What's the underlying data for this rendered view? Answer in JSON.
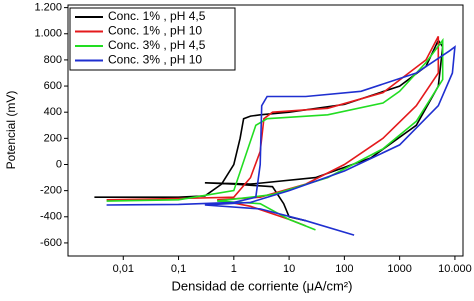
{
  "chart_data": {
    "type": "line",
    "xlabel": "Densidad de corriente (μA/cm²)",
    "ylabel": "Potencial (mV)",
    "log_x": true,
    "legend": "top-left",
    "xlim": [
      0.001,
      14000
    ],
    "ylim": [
      -700,
      1220
    ],
    "xticks": [
      {
        "value": 0.01,
        "label": "0,01"
      },
      {
        "value": 0.1,
        "label": "0,1"
      },
      1,
      10,
      100,
      1000,
      {
        "value": 10000,
        "label": "10.000"
      }
    ],
    "yticks": [
      {
        "value": 1200,
        "label": "1.200"
      },
      {
        "value": 1000,
        "label": "1.000"
      },
      800,
      600,
      400,
      200,
      0,
      -200,
      -400,
      -600
    ],
    "series": [
      {
        "name": "Conc. 1% , pH 4,5",
        "color": "#000000",
        "x": [
          0.003,
          0.1,
          0.3,
          0.6,
          1,
          1.3,
          1.5,
          2,
          3,
          10,
          100,
          1000,
          3000,
          5000,
          6000,
          5000,
          2000,
          300,
          30,
          2,
          0.3,
          1,
          5,
          8,
          10,
          20
        ],
        "values": [
          -250,
          -250,
          -240,
          -150,
          0,
          200,
          350,
          370,
          380,
          400,
          460,
          600,
          750,
          950,
          900,
          600,
          300,
          50,
          -100,
          -150,
          -140,
          -150,
          -170,
          -300,
          -400,
          -430
        ]
      },
      {
        "name": "Conc. 1% , pH 10",
        "color": "#e41a1c",
        "x": [
          0.005,
          0.1,
          1,
          2,
          3,
          3.5,
          5,
          50,
          500,
          3000,
          5000,
          5000,
          2000,
          500,
          100,
          20,
          3,
          0.5,
          2,
          10,
          20
        ],
        "values": [
          -270,
          -260,
          -250,
          -100,
          100,
          350,
          400,
          430,
          550,
          800,
          980,
          700,
          450,
          200,
          0,
          -150,
          -250,
          -270,
          -320,
          -420,
          -470
        ]
      },
      {
        "name": "Conc. 3% , pH 4,5",
        "color": "#22dd22",
        "x": [
          0.005,
          0.1,
          1,
          2.5,
          4,
          50,
          500,
          1000,
          3000,
          6000,
          6000,
          2000,
          500,
          50,
          5,
          0.5,
          3,
          10,
          30
        ],
        "values": [
          -280,
          -270,
          -200,
          300,
          350,
          380,
          470,
          560,
          780,
          950,
          650,
          330,
          120,
          -100,
          -230,
          -280,
          -300,
          -420,
          -500
        ]
      },
      {
        "name": "Conc. 3% , pH 10",
        "color": "#1f2fd0",
        "x": [
          0.005,
          0.1,
          1,
          2.5,
          3,
          3.2,
          4,
          20,
          200,
          2000,
          8000,
          10000,
          9000,
          5000,
          1000,
          100,
          10,
          2,
          0.3,
          3,
          20,
          150
        ],
        "values": [
          -310,
          -305,
          -290,
          -250,
          0,
          450,
          520,
          520,
          560,
          700,
          870,
          900,
          700,
          450,
          150,
          -50,
          -200,
          -290,
          -310,
          -340,
          -430,
          -540
        ]
      }
    ]
  }
}
